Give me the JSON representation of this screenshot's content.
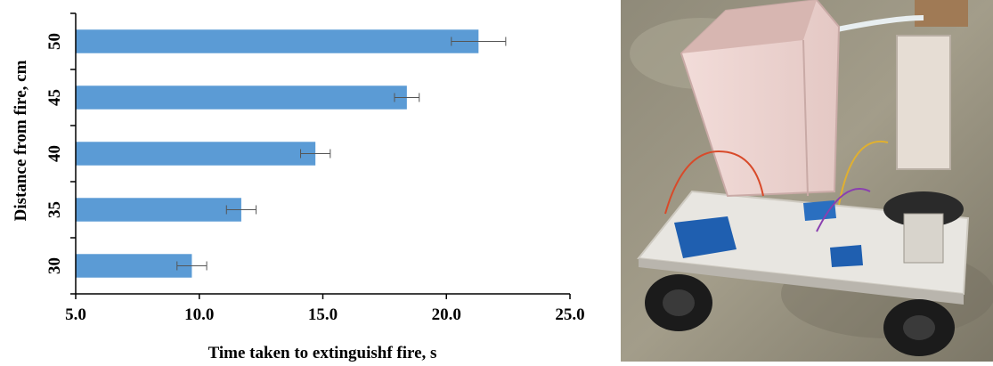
{
  "chart_data": {
    "type": "bar",
    "orientation": "horizontal",
    "categories": [
      "30",
      "35",
      "40",
      "45",
      "50"
    ],
    "values": [
      9.7,
      11.7,
      14.7,
      18.4,
      21.3
    ],
    "errors": [
      0.6,
      0.6,
      0.6,
      0.5,
      1.1
    ],
    "xlabel": "Time taken to extinguishf fire, s",
    "ylabel": "Distance from fire, cm",
    "xlim": [
      5.0,
      25.0
    ],
    "xticks": [
      "5.0",
      "10.0",
      "15.0",
      "20.0",
      "25.0"
    ],
    "grid": false,
    "bar_color": "#5b9bd5"
  },
  "photo": {
    "subject": "wheeled fire-extinguishing robot prototype with water tank, relay modules and pump"
  }
}
